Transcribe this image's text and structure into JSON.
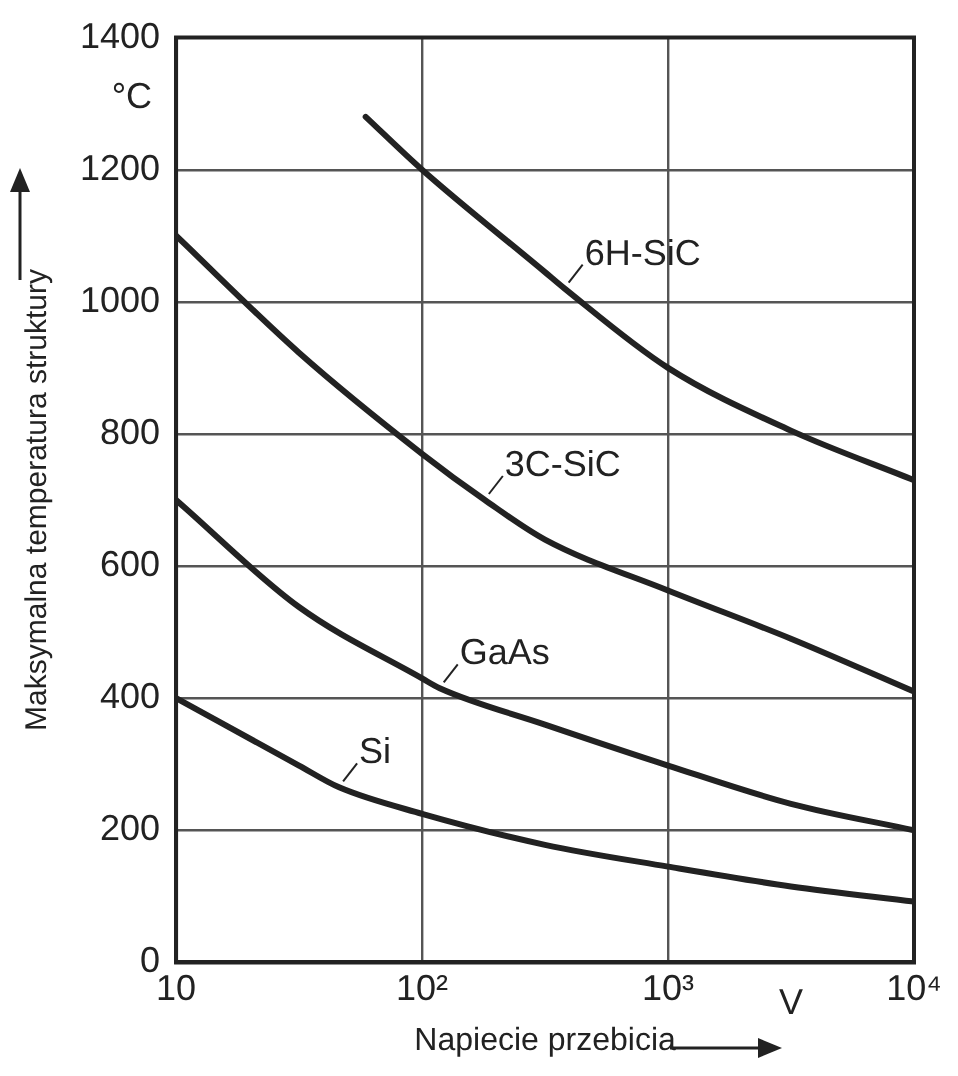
{
  "chart_data": {
    "type": "line",
    "xlabel": "Napiecie przebicia",
    "ylabel": "Maksymalna temperatura struktury",
    "log": "x",
    "grid": true,
    "marker": "none",
    "line_style": "solid",
    "legend": false,
    "xlim": [
      10,
      10000
    ],
    "xticks": [
      10,
      {
        "value": 100,
        "label": "10²"
      },
      {
        "value": 1000,
        "label": "10³"
      },
      {
        "value": 10000,
        "label": "10⁴"
      }
    ],
    "ylim": [
      0,
      1400
    ],
    "yticks": [
      0,
      200,
      400,
      600,
      800,
      1000,
      1200,
      1400
    ],
    "series": [
      {
        "color": "#222222",
        "x": [
          59,
          100,
          316,
          380,
          1000,
          3160,
          10000
        ],
        "values": [
          1280,
          1200,
          1045,
          1020,
          900,
          805,
          730
        ]
      },
      {
        "color": "#222222",
        "x": [
          10,
          31.6,
          100,
          180,
          316,
          1000,
          3160,
          10000
        ],
        "values": [
          1100,
          923,
          770,
          700,
          640,
          563,
          490,
          410
        ]
      },
      {
        "color": "#222222",
        "x": [
          10,
          31.6,
          100,
          118,
          316,
          1000,
          3160,
          10000
        ],
        "values": [
          700,
          538,
          430,
          415,
          360,
          298,
          240,
          200
        ]
      },
      {
        "color": "#222222",
        "x": [
          10,
          31.6,
          46,
          100,
          316,
          1000,
          3160,
          10000
        ],
        "values": [
          400,
          298,
          265,
          225,
          178,
          145,
          115,
          92
        ]
      }
    ],
    "annotations": [
      "°C",
      "V",
      {
        "text": "6H-SiC",
        "x": 380,
        "y": 1020
      },
      {
        "text": "3C-SiC",
        "x": 180,
        "y": 700
      },
      {
        "text": "GaAs",
        "x": 118,
        "y": 415
      },
      {
        "text": "Si",
        "x": 46,
        "y": 265
      }
    ]
  }
}
